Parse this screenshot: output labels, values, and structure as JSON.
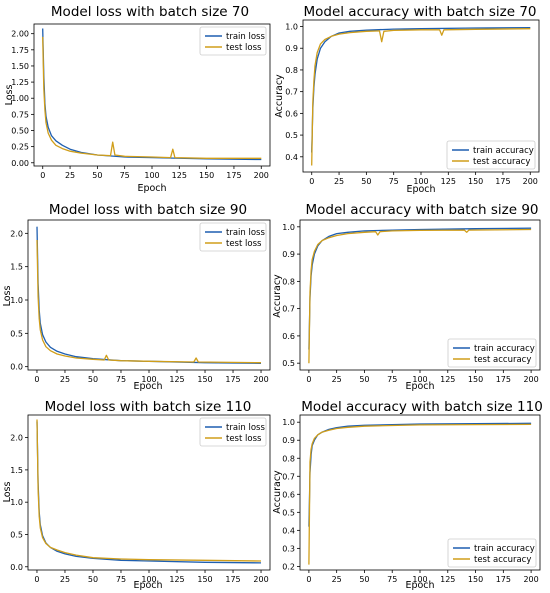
{
  "colors": {
    "train": "#1f5fb0",
    "test": "#d09e1a",
    "axis": "#000000"
  },
  "chart_data": [
    {
      "type": "line",
      "title": "Model loss with batch size 70",
      "xlabel": "Epoch",
      "ylabel": "Loss",
      "xlim": [
        -8,
        208
      ],
      "ylim": [
        -0.05,
        2.15
      ],
      "xticks": [
        0,
        25,
        50,
        75,
        100,
        125,
        150,
        175,
        200
      ],
      "xtick_labels": [
        "0",
        "25",
        "50",
        "75",
        "100",
        "125",
        "150",
        "175",
        "200"
      ],
      "yticks": [
        0,
        0.25,
        0.5,
        0.75,
        1.0,
        1.25,
        1.5,
        1.75,
        2.0
      ],
      "ytick_labels": [
        "0.00",
        "0.25",
        "0.50",
        "0.75",
        "1.00",
        "1.25",
        "1.50",
        "1.75",
        "2.00"
      ],
      "legend": "top-right",
      "series": [
        {
          "name": "train loss",
          "x": [
            0,
            1,
            2,
            3,
            5,
            8,
            12,
            18,
            25,
            35,
            50,
            75,
            100,
            150,
            200
          ],
          "values": [
            2.08,
            1.35,
            0.92,
            0.72,
            0.55,
            0.42,
            0.34,
            0.27,
            0.21,
            0.16,
            0.12,
            0.09,
            0.08,
            0.06,
            0.05
          ]
        },
        {
          "name": "test loss",
          "x": [
            0,
            1,
            2,
            3,
            5,
            8,
            12,
            18,
            25,
            35,
            50,
            62,
            64,
            66,
            75,
            100,
            117,
            119,
            121,
            150,
            200
          ],
          "values": [
            1.95,
            1.15,
            0.82,
            0.62,
            0.46,
            0.35,
            0.27,
            0.22,
            0.18,
            0.15,
            0.12,
            0.11,
            0.32,
            0.12,
            0.1,
            0.09,
            0.08,
            0.21,
            0.08,
            0.07,
            0.07
          ]
        }
      ]
    },
    {
      "type": "line",
      "title": "Model accuracy with batch size 70",
      "xlabel": "Epoch",
      "ylabel": "Accuracy",
      "xlim": [
        -8,
        208
      ],
      "ylim": [
        0.33,
        1.03
      ],
      "xticks": [
        0,
        25,
        50,
        75,
        100,
        125,
        150,
        175,
        200
      ],
      "xtick_labels": [
        "0",
        "25",
        "50",
        "75",
        "100",
        "125",
        "150",
        "175",
        "200"
      ],
      "yticks": [
        0.4,
        0.5,
        0.6,
        0.7,
        0.8,
        0.9,
        1.0
      ],
      "ytick_labels": [
        "0.4",
        "0.5",
        "0.6",
        "0.7",
        "0.8",
        "0.9",
        "1.0"
      ],
      "legend": "bottom-right",
      "series": [
        {
          "name": "train accuracy",
          "x": [
            0,
            1,
            2,
            3,
            5,
            8,
            12,
            18,
            25,
            35,
            50,
            75,
            100,
            150,
            200
          ],
          "values": [
            0.42,
            0.62,
            0.72,
            0.78,
            0.85,
            0.9,
            0.93,
            0.955,
            0.97,
            0.978,
            0.983,
            0.988,
            0.99,
            0.993,
            0.995
          ]
        },
        {
          "name": "test accuracy",
          "x": [
            0,
            1,
            2,
            3,
            5,
            8,
            12,
            18,
            25,
            35,
            50,
            62,
            64,
            66,
            75,
            100,
            117,
            119,
            121,
            150,
            200
          ],
          "values": [
            0.36,
            0.65,
            0.75,
            0.82,
            0.88,
            0.92,
            0.94,
            0.955,
            0.965,
            0.972,
            0.978,
            0.98,
            0.93,
            0.978,
            0.982,
            0.985,
            0.985,
            0.96,
            0.985,
            0.987,
            0.99
          ]
        }
      ]
    },
    {
      "type": "line",
      "title": "Model loss with batch size 90",
      "xlabel": "Epoch",
      "ylabel": "Loss",
      "xlim": [
        -8,
        208
      ],
      "ylim": [
        -0.05,
        2.2
      ],
      "xticks": [
        0,
        25,
        50,
        75,
        100,
        125,
        150,
        175,
        200
      ],
      "xtick_labels": [
        "0",
        "25",
        "50",
        "75",
        "100",
        "125",
        "150",
        "175",
        "200"
      ],
      "yticks": [
        0,
        0.5,
        1.0,
        1.5,
        2.0
      ],
      "ytick_labels": [
        "0.0",
        "0.5",
        "1.0",
        "1.5",
        "2.0"
      ],
      "legend": "top-right",
      "series": [
        {
          "name": "train loss",
          "x": [
            0,
            1,
            2,
            3,
            5,
            8,
            12,
            18,
            25,
            35,
            50,
            75,
            100,
            150,
            200
          ],
          "values": [
            2.1,
            1.25,
            0.85,
            0.65,
            0.48,
            0.37,
            0.29,
            0.23,
            0.19,
            0.15,
            0.12,
            0.09,
            0.08,
            0.06,
            0.05
          ]
        },
        {
          "name": "test loss",
          "x": [
            0,
            1,
            2,
            3,
            5,
            8,
            12,
            18,
            25,
            35,
            50,
            60,
            62,
            64,
            75,
            100,
            140,
            142,
            144,
            200
          ],
          "values": [
            1.9,
            1.05,
            0.72,
            0.55,
            0.4,
            0.3,
            0.24,
            0.19,
            0.16,
            0.13,
            0.11,
            0.1,
            0.17,
            0.1,
            0.09,
            0.08,
            0.07,
            0.13,
            0.07,
            0.06
          ]
        }
      ]
    },
    {
      "type": "line",
      "title": "Model accuracy with batch size 90",
      "xlabel": "Epoch",
      "ylabel": "Accuracy",
      "xlim": [
        -8,
        208
      ],
      "ylim": [
        0.475,
        1.025
      ],
      "xticks": [
        0,
        25,
        50,
        75,
        100,
        125,
        150,
        175,
        200
      ],
      "xtick_labels": [
        "0",
        "25",
        "50",
        "75",
        "100",
        "125",
        "150",
        "175",
        "200"
      ],
      "yticks": [
        0.5,
        0.6,
        0.7,
        0.8,
        0.9,
        1.0
      ],
      "ytick_labels": [
        "0.5",
        "0.6",
        "0.7",
        "0.8",
        "0.9",
        "1.0"
      ],
      "legend": "bottom-right",
      "series": [
        {
          "name": "train accuracy",
          "x": [
            0,
            1,
            2,
            3,
            5,
            8,
            12,
            18,
            25,
            35,
            50,
            75,
            100,
            150,
            200
          ],
          "values": [
            0.55,
            0.74,
            0.82,
            0.86,
            0.9,
            0.93,
            0.95,
            0.965,
            0.975,
            0.98,
            0.985,
            0.988,
            0.99,
            0.993,
            0.995
          ]
        },
        {
          "name": "test accuracy",
          "x": [
            0,
            1,
            2,
            3,
            5,
            8,
            12,
            18,
            25,
            35,
            50,
            60,
            62,
            64,
            75,
            100,
            140,
            142,
            144,
            200
          ],
          "values": [
            0.5,
            0.76,
            0.84,
            0.88,
            0.91,
            0.935,
            0.95,
            0.96,
            0.968,
            0.975,
            0.98,
            0.982,
            0.97,
            0.982,
            0.985,
            0.987,
            0.988,
            0.98,
            0.988,
            0.99
          ]
        }
      ]
    },
    {
      "type": "line",
      "title": "Model loss with batch size 110",
      "xlabel": "Epoch",
      "ylabel": "Loss",
      "xlim": [
        -8,
        208
      ],
      "ylim": [
        -0.05,
        2.35
      ],
      "xticks": [
        0,
        25,
        50,
        75,
        100,
        125,
        150,
        175,
        200
      ],
      "xtick_labels": [
        "0",
        "25",
        "50",
        "75",
        "100",
        "125",
        "150",
        "175",
        "200"
      ],
      "yticks": [
        0,
        0.5,
        1.0,
        1.5,
        2.0
      ],
      "ytick_labels": [
        "0.0",
        "0.5",
        "1.0",
        "1.5",
        "2.0"
      ],
      "legend": "top-right",
      "series": [
        {
          "name": "train loss",
          "x": [
            0,
            1,
            2,
            3,
            5,
            8,
            12,
            18,
            25,
            35,
            50,
            75,
            100,
            150,
            200
          ],
          "values": [
            2.25,
            1.3,
            0.85,
            0.65,
            0.48,
            0.37,
            0.3,
            0.24,
            0.2,
            0.16,
            0.13,
            0.1,
            0.09,
            0.07,
            0.06
          ]
        },
        {
          "name": "test loss",
          "x": [
            0,
            1,
            2,
            3,
            5,
            8,
            12,
            18,
            25,
            35,
            50,
            75,
            100,
            150,
            200
          ],
          "values": [
            2.28,
            1.2,
            0.78,
            0.6,
            0.45,
            0.36,
            0.3,
            0.26,
            0.22,
            0.18,
            0.14,
            0.12,
            0.11,
            0.1,
            0.09
          ]
        }
      ]
    },
    {
      "type": "line",
      "title": "Model accuracy with batch size 110",
      "xlabel": "Epoch",
      "ylabel": "Accuracy",
      "xlim": [
        -8,
        208
      ],
      "ylim": [
        0.18,
        1.04
      ],
      "xticks": [
        0,
        25,
        50,
        75,
        100,
        125,
        150,
        175,
        200
      ],
      "xtick_labels": [
        "0",
        "25",
        "50",
        "75",
        "100",
        "125",
        "150",
        "175",
        "200"
      ],
      "yticks": [
        0.2,
        0.3,
        0.4,
        0.5,
        0.6,
        0.7,
        0.8,
        0.9,
        1.0
      ],
      "ytick_labels": [
        "0.2",
        "0.3",
        "0.4",
        "0.5",
        "0.6",
        "0.7",
        "0.8",
        "0.9",
        "1.0"
      ],
      "legend": "bottom-right",
      "series": [
        {
          "name": "train accuracy",
          "x": [
            0,
            1,
            2,
            3,
            5,
            8,
            12,
            18,
            25,
            35,
            50,
            75,
            100,
            150,
            200
          ],
          "values": [
            0.42,
            0.72,
            0.82,
            0.87,
            0.9,
            0.93,
            0.945,
            0.96,
            0.97,
            0.978,
            0.983,
            0.987,
            0.99,
            0.992,
            0.994
          ]
        },
        {
          "name": "test accuracy",
          "x": [
            0,
            1,
            2,
            3,
            5,
            8,
            12,
            18,
            25,
            35,
            50,
            75,
            100,
            150,
            200
          ],
          "values": [
            0.21,
            0.78,
            0.85,
            0.88,
            0.91,
            0.93,
            0.945,
            0.955,
            0.965,
            0.972,
            0.978,
            0.982,
            0.985,
            0.987,
            0.988
          ]
        }
      ]
    }
  ]
}
